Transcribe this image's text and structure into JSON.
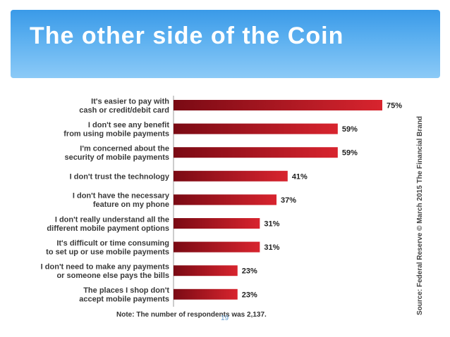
{
  "slide": {
    "title": "The other side of the Coin",
    "page_number": "19"
  },
  "chart_data": {
    "type": "bar",
    "orientation": "horizontal",
    "categories": [
      [
        "It's easier to pay with",
        "cash or credit/debit card"
      ],
      [
        "I don't see any benefit",
        "from using mobile payments"
      ],
      [
        "I'm concerned about the",
        "security of mobile payments"
      ],
      [
        "I don't trust the technology"
      ],
      [
        "I don't have the necessary",
        "feature on my phone"
      ],
      [
        "I don't really understand all the",
        "different mobile payment options"
      ],
      [
        "It's difficult or time consuming",
        "to set up or use mobile payments"
      ],
      [
        "I don't need to make any payments",
        "or someone else pays the bills"
      ],
      [
        "The places I shop don't",
        "accept mobile payments"
      ]
    ],
    "values": [
      75,
      59,
      59,
      41,
      37,
      31,
      31,
      23,
      23
    ],
    "value_labels": [
      "75%",
      "59%",
      "59%",
      "41%",
      "37%",
      "31%",
      "31%",
      "23%",
      "23%"
    ],
    "xlim": [
      0,
      100
    ],
    "grid": false,
    "bar_color": "#c8102e",
    "note": "Note: The number of respondents was 2,137.",
    "source": "Source: Federal Reserve © March 2015 The Financial Brand"
  },
  "colors": {
    "header": "#4aa3ee",
    "bar_dark": "#7a0a14",
    "bar_light": "#d8242e"
  }
}
